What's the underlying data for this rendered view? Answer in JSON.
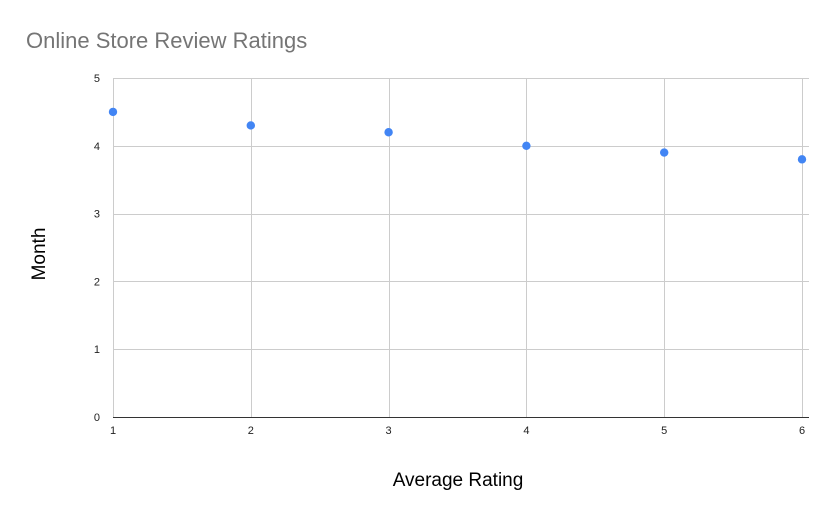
{
  "chart_data": {
    "type": "scatter",
    "title": "Online Store Review Ratings",
    "xlabel": "Average Rating",
    "ylabel": "Month",
    "x": [
      1,
      2,
      3,
      4,
      5,
      6
    ],
    "y": [
      4.5,
      4.3,
      4.2,
      4.0,
      3.9,
      3.8
    ],
    "xlim": [
      1,
      6
    ],
    "ylim": [
      0,
      5
    ],
    "x_ticks": [
      "1",
      "2",
      "3",
      "4",
      "5",
      "6"
    ],
    "y_ticks": [
      "0",
      "1",
      "2",
      "3",
      "4",
      "5"
    ],
    "grid": true,
    "legend": "none",
    "colors": {
      "point": "#4285f4",
      "grid": "#cccccc",
      "axis": "#333333",
      "title": "#757575"
    }
  }
}
